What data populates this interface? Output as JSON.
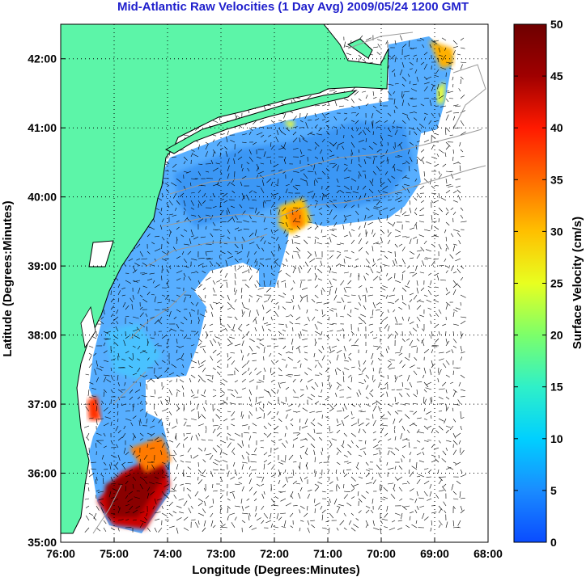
{
  "title": "Mid-Atlantic Raw Velocities (1 Day Avg) 2009/05/24 1200 GMT",
  "xlabel": "Longitude (Degrees:Minutes)",
  "ylabel": "Latitude (Degrees:Minutes)",
  "colorbar": {
    "label": "Surface Velocity (cm/s)",
    "ticks": [
      "0",
      "5",
      "10",
      "15",
      "20",
      "25",
      "30",
      "35",
      "40",
      "45",
      "50"
    ],
    "range": [
      0,
      50
    ],
    "colors": [
      "#0a4cff",
      "#1a8cff",
      "#00d0ff",
      "#2ff0c8",
      "#7cff6a",
      "#e8ff20",
      "#ffc000",
      "#ff6a00",
      "#ff1a00",
      "#a00000",
      "#6e0000"
    ]
  },
  "x_ticks": [
    "76:00",
    "75:00",
    "74:00",
    "73:00",
    "72:00",
    "71:00",
    "70:00",
    "69:00",
    "68:00"
  ],
  "y_ticks": [
    "42:00",
    "41:00",
    "40:00",
    "39:00",
    "38:00",
    "37:00",
    "36:00",
    "35:00"
  ],
  "map": {
    "lon_range": [
      -76,
      -68
    ],
    "lat_range": [
      35,
      42.5
    ],
    "land_color": "#5cf5a8",
    "coastline_color": "#000000",
    "bathymetry_color": "#999999",
    "grid": "dotted"
  },
  "chart_data": {
    "type": "heatmap",
    "title": "Mid-Atlantic Raw Velocities (1 Day Avg) 2009/05/24 1200 GMT",
    "xlabel": "Longitude (Degrees:Minutes)",
    "ylabel": "Latitude (Degrees:Minutes)",
    "xlim": [
      -76,
      -68
    ],
    "ylim": [
      35,
      42.5
    ],
    "value_label": "Surface Velocity (cm/s)",
    "value_range": [
      0,
      50
    ],
    "hotspots": [
      {
        "lon": -74.3,
        "lat": 35.6,
        "value": 48
      },
      {
        "lon": -74.2,
        "lat": 36.1,
        "value": 35
      },
      {
        "lon": -75.3,
        "lat": 36.95,
        "value": 35
      },
      {
        "lon": -71.7,
        "lat": 39.65,
        "value": 28
      },
      {
        "lon": -69.2,
        "lat": 42.1,
        "value": 28
      }
    ],
    "background_value": 8
  }
}
